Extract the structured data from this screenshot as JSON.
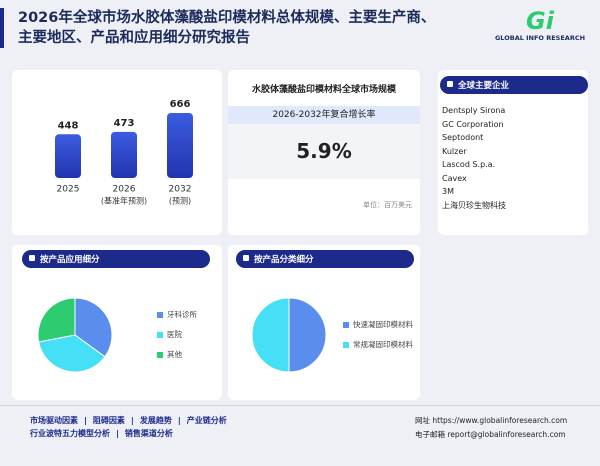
{
  "header": {
    "title": "2026年全球市场水胶体藻酸盐印模材料总体规模、主要生产商、主要地区、产品和应用细分研究报告",
    "logo_mark": "Gi",
    "logo_text": "GLOBAL INFO RESEARCH"
  },
  "chart_data": [
    {
      "type": "bar",
      "categories": [
        "2025",
        "2026",
        "2032"
      ],
      "category_notes": [
        null,
        "(基准年预测)",
        "(预测)"
      ],
      "values": [
        448,
        473,
        666
      ],
      "color": "#2234b0"
    },
    {
      "type": "pie",
      "title": "按产品应用细分",
      "categories": [
        "牙科诊所",
        "医院",
        "其他"
      ],
      "values": [
        35,
        37,
        28
      ],
      "colors": [
        "#5b8def",
        "#45e0f5",
        "#2ecc71"
      ]
    },
    {
      "type": "pie",
      "title": "按产品分类细分",
      "categories": [
        "快速凝固印模材料",
        "常规凝固印模材料"
      ],
      "values": [
        50,
        50
      ],
      "colors": [
        "#5b8def",
        "#45e0f5"
      ]
    }
  ],
  "market": {
    "title": "水胶体藻酸盐印模材料全球市场规模",
    "cagr_label": "2026-2032年复合增长率",
    "cagr": "5.9%",
    "unit": "单位：百万美元"
  },
  "companies": {
    "title": "全球主要企业",
    "list": [
      "Dentsply Sirona",
      "GC Corporation",
      "Septodont",
      "Kulzer",
      "Lascod S.p.a.",
      "Cavex",
      "3M",
      "上海贝珍生物科技"
    ]
  },
  "footer": {
    "links": [
      [
        "市场驱动因素",
        "阻碍因素",
        "发展趋势",
        "产业链分析"
      ],
      [
        "行业波特五力模型分析",
        "销售渠道分析"
      ]
    ],
    "website_label": "网址",
    "website": "https://www.globalinforesearch.com",
    "email_label": "电子邮箱",
    "email": "report@globalinforesearch.com"
  }
}
